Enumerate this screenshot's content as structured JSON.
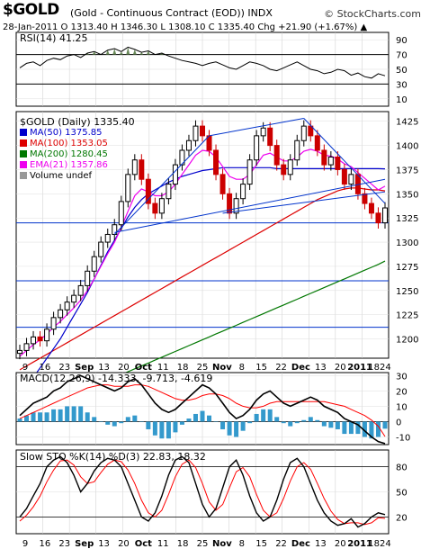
{
  "header": {
    "symbol": "$GOLD",
    "description": "(Gold - Continuous Contract (EOD))  INDX",
    "brand": "© StockCharts.com",
    "quote": "28-Jan-2011  O 1313.40  H 1346.30  L 1308.10  C 1335.40  Chg +21.90 (+1.67%) ▲"
  },
  "colors": {
    "price_up": "#000000",
    "price_down": "#cc0000",
    "ma50": "#0000cc",
    "ma100": "#dd0000",
    "ma200": "#007700",
    "ema21": "#ee00ee",
    "macd_hist": "#3399cc",
    "macd_signal": "#ff0000"
  },
  "chart_data": [
    {
      "type": "line",
      "title": "RSI(14) 41.25",
      "series": [
        {
          "name": "RSI(14)",
          "values": [
            52,
            58,
            60,
            55,
            62,
            65,
            63,
            68,
            70,
            66,
            72,
            74,
            70,
            76,
            78,
            74,
            80,
            77,
            73,
            75,
            70,
            72,
            68,
            65,
            62,
            60,
            58,
            55,
            58,
            60,
            56,
            52,
            50,
            55,
            60,
            58,
            55,
            50,
            48,
            52,
            56,
            60,
            55,
            50,
            48,
            44,
            46,
            50,
            48,
            42,
            45,
            40,
            38,
            44,
            41.25
          ]
        }
      ],
      "ylim": [
        0,
        100
      ],
      "yticks": [
        "90",
        "70",
        "50",
        "30",
        "10"
      ],
      "reference_lines": [
        70,
        30
      ]
    },
    {
      "type": "candlestick",
      "title": "$GOLD (Daily) 1335.40",
      "ylim": [
        1180,
        1435
      ],
      "yticks": [
        "1425",
        "1400",
        "1375",
        "1350",
        "1325",
        "1300",
        "1275",
        "1250",
        "1225",
        "1200"
      ],
      "legend": [
        {
          "name": "MA(50) 1375.85",
          "key": "ma50"
        },
        {
          "name": "MA(100) 1353.05",
          "key": "ma100"
        },
        {
          "name": "MA(200) 1280.45",
          "key": "ma200"
        },
        {
          "name": "EMA(21) 1357.86",
          "key": "ema21"
        },
        {
          "name": "Volume undef",
          "key": "vol"
        }
      ],
      "close": [
        1188,
        1195,
        1202,
        1198,
        1210,
        1222,
        1230,
        1238,
        1245,
        1255,
        1270,
        1285,
        1300,
        1308,
        1318,
        1342,
        1370,
        1385,
        1365,
        1340,
        1330,
        1345,
        1360,
        1380,
        1395,
        1405,
        1420,
        1410,
        1395,
        1370,
        1350,
        1330,
        1345,
        1360,
        1385,
        1410,
        1418,
        1400,
        1380,
        1370,
        1385,
        1405,
        1420,
        1410,
        1395,
        1380,
        1388,
        1375,
        1360,
        1370,
        1350,
        1340,
        1330,
        1320,
        1335.4
      ],
      "ma50": [
        1140,
        1150,
        1160,
        1170,
        1180,
        1190,
        1200,
        1212,
        1224,
        1236,
        1248,
        1262,
        1276,
        1290,
        1302,
        1314,
        1326,
        1336,
        1344,
        1350,
        1354,
        1358,
        1362,
        1365,
        1368,
        1370,
        1372,
        1374,
        1375,
        1376,
        1377,
        1377,
        1377,
        1377,
        1377,
        1377,
        1377,
        1377,
        1376,
        1376,
        1376,
        1376,
        1376,
        1376,
        1376,
        1376,
        1376,
        1376,
        1376,
        1376,
        1376,
        1376,
        1376,
        1376,
        1375.85
      ],
      "ma100": [
        1168,
        1172,
        1176,
        1180,
        1184,
        1188,
        1192,
        1196,
        1200,
        1204,
        1208,
        1212,
        1216,
        1220,
        1224,
        1228,
        1232,
        1236,
        1240,
        1244,
        1248,
        1252,
        1256,
        1260,
        1264,
        1268,
        1272,
        1276,
        1280,
        1284,
        1288,
        1292,
        1296,
        1300,
        1304,
        1308,
        1312,
        1316,
        1320,
        1324,
        1328,
        1332,
        1336,
        1340,
        1344,
        1347,
        1350,
        1353,
        1355,
        1356,
        1356,
        1355,
        1354,
        1354,
        1353.05
      ],
      "ma200": [
        1120,
        1122,
        1124,
        1127,
        1130,
        1133,
        1136,
        1139,
        1142,
        1145,
        1148,
        1151,
        1154,
        1157,
        1160,
        1163,
        1166,
        1169,
        1172,
        1175,
        1178,
        1181,
        1184,
        1187,
        1190,
        1193,
        1196,
        1199,
        1202,
        1205,
        1208,
        1211,
        1214,
        1217,
        1220,
        1223,
        1226,
        1229,
        1232,
        1235,
        1238,
        1241,
        1244,
        1247,
        1250,
        1253,
        1256,
        1259,
        1262,
        1265,
        1268,
        1271,
        1274,
        1277,
        1280.45
      ],
      "ema21": [
        1182,
        1188,
        1194,
        1199,
        1205,
        1212,
        1218,
        1225,
        1232,
        1240,
        1250,
        1262,
        1275,
        1288,
        1300,
        1315,
        1332,
        1348,
        1355,
        1352,
        1348,
        1348,
        1352,
        1360,
        1370,
        1380,
        1390,
        1395,
        1394,
        1388,
        1378,
        1368,
        1365,
        1365,
        1370,
        1380,
        1390,
        1392,
        1388,
        1384,
        1384,
        1388,
        1394,
        1396,
        1394,
        1390,
        1389,
        1386,
        1381,
        1378,
        1372,
        1366,
        1360,
        1354,
        1357.86
      ]
    },
    {
      "type": "line",
      "title": "MACD(12,26,9) -14.333, -9.713, -4.619",
      "series": [
        {
          "name": "MACD",
          "values": [
            4,
            8,
            12,
            14,
            16,
            20,
            22,
            26,
            28,
            30,
            28,
            26,
            24,
            22,
            20,
            22,
            26,
            28,
            24,
            18,
            12,
            8,
            6,
            8,
            12,
            16,
            20,
            24,
            22,
            18,
            12,
            6,
            2,
            4,
            8,
            14,
            18,
            20,
            16,
            12,
            10,
            12,
            14,
            16,
            14,
            10,
            8,
            6,
            2,
            0,
            -2,
            -6,
            -10,
            -13,
            -14.333
          ]
        },
        {
          "name": "Signal",
          "values": [
            2,
            4,
            6,
            8,
            10,
            12,
            14,
            16,
            18,
            20,
            22,
            23,
            24,
            24,
            23,
            23,
            23,
            24,
            24,
            23,
            21,
            19,
            17,
            15,
            14,
            14,
            15,
            17,
            18,
            18,
            17,
            15,
            12,
            10,
            9,
            9,
            10,
            12,
            13,
            13,
            13,
            13,
            13,
            13,
            13,
            13,
            12,
            11,
            10,
            8,
            6,
            4,
            1,
            -3,
            -9.713
          ]
        },
        {
          "name": "Histogram",
          "values": [
            2,
            4,
            6,
            6,
            6,
            8,
            8,
            10,
            10,
            10,
            6,
            3,
            0,
            -2,
            -3,
            -1,
            3,
            4,
            0,
            -5,
            -9,
            -11,
            -11,
            -7,
            -2,
            2,
            5,
            7,
            4,
            0,
            -5,
            -9,
            -10,
            -6,
            -1,
            5,
            8,
            8,
            3,
            -1,
            -3,
            -1,
            1,
            3,
            1,
            -3,
            -4,
            -5,
            -8,
            -8,
            -8,
            -10,
            -11,
            -10,
            -4.619
          ]
        }
      ],
      "ylim": [
        -15,
        32
      ],
      "yticks": [
        "30",
        "20",
        "10",
        "0",
        "-10"
      ]
    },
    {
      "type": "line",
      "title": "Slow STO %K(14) %D(3) 22.83, 18.32",
      "series": [
        {
          "name": "%K",
          "values": [
            20,
            30,
            45,
            60,
            80,
            88,
            92,
            85,
            70,
            50,
            60,
            75,
            85,
            90,
            88,
            80,
            60,
            40,
            20,
            15,
            25,
            45,
            70,
            88,
            92,
            85,
            60,
            35,
            20,
            30,
            55,
            80,
            88,
            70,
            45,
            25,
            15,
            20,
            40,
            65,
            85,
            90,
            80,
            60,
            40,
            25,
            15,
            10,
            12,
            18,
            8,
            12,
            20,
            25,
            22.83
          ]
        },
        {
          "name": "%D",
          "values": [
            15,
            22,
            32,
            45,
            62,
            76,
            87,
            88,
            82,
            68,
            60,
            62,
            73,
            83,
            88,
            86,
            76,
            60,
            40,
            25,
            20,
            28,
            47,
            68,
            83,
            88,
            79,
            60,
            38,
            28,
            35,
            55,
            74,
            79,
            68,
            47,
            28,
            20,
            25,
            42,
            63,
            80,
            85,
            77,
            60,
            42,
            27,
            17,
            12,
            13,
            13,
            11,
            13,
            19,
            18.32
          ]
        }
      ],
      "ylim": [
        0,
        100
      ],
      "yticks": [
        "80",
        "50",
        "20"
      ]
    }
  ],
  "axis_labels": {
    "middle": [
      "9",
      "16",
      "23",
      "Sep",
      "13",
      "20",
      "Oct",
      "11",
      "18",
      "25",
      "Nov",
      "8",
      "15",
      "22",
      "Dec",
      "13",
      "20",
      "2011",
      "1824"
    ],
    "bottom": [
      "9",
      "16",
      "23",
      "Sep",
      "13",
      "20",
      "Oct",
      "11",
      "18",
      "25",
      "Nov",
      "8",
      "15",
      "22",
      "Dec",
      "13",
      "20",
      "2011",
      "1824"
    ]
  }
}
